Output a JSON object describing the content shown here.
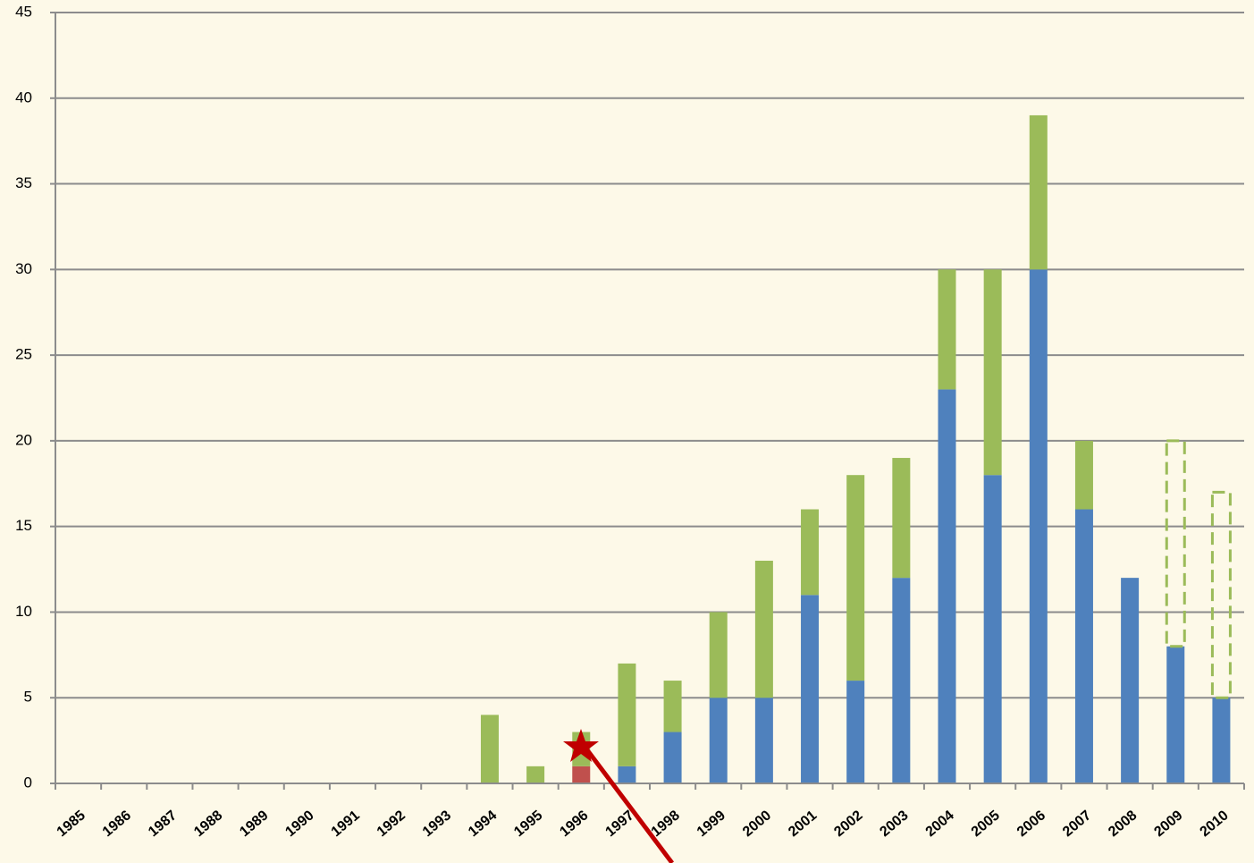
{
  "chart_data": {
    "type": "stacked-bar",
    "categories": [
      "1985",
      "1986",
      "1987",
      "1988",
      "1989",
      "1990",
      "1991",
      "1992",
      "1993",
      "1994",
      "1995",
      "1996",
      "1997",
      "1998",
      "1999",
      "2000",
      "2001",
      "2002",
      "2003",
      "2004",
      "2005",
      "2006",
      "2007",
      "2008",
      "2009",
      "2010"
    ],
    "series": [
      {
        "color": "#4f81bd",
        "values": [
          null,
          null,
          null,
          null,
          null,
          null,
          null,
          null,
          null,
          null,
          null,
          null,
          1,
          3,
          5,
          5,
          11,
          6,
          12,
          23,
          18,
          30,
          16,
          12,
          8,
          5
        ]
      },
      {
        "color": "#c0504d",
        "values": [
          null,
          null,
          null,
          null,
          null,
          null,
          null,
          null,
          null,
          null,
          null,
          1,
          null,
          null,
          null,
          null,
          null,
          null,
          null,
          null,
          null,
          null,
          null,
          null,
          null,
          null
        ]
      },
      {
        "color": "#9bbb59",
        "values": [
          null,
          null,
          null,
          null,
          null,
          null,
          null,
          null,
          null,
          4,
          1,
          2,
          6,
          3,
          5,
          8,
          5,
          12,
          7,
          7,
          12,
          9,
          4,
          null,
          null,
          null
        ]
      },
      {
        "color": "#9bbb59",
        "dashed": true,
        "values": [
          null,
          null,
          null,
          null,
          null,
          null,
          null,
          null,
          null,
          null,
          null,
          null,
          null,
          null,
          null,
          null,
          null,
          null,
          null,
          null,
          null,
          null,
          null,
          null,
          12,
          12
        ]
      }
    ],
    "ylim": [
      0,
      45
    ],
    "yticks": [
      0,
      5,
      10,
      15,
      20,
      25,
      30,
      35,
      40,
      45
    ],
    "grid": true
  }
}
